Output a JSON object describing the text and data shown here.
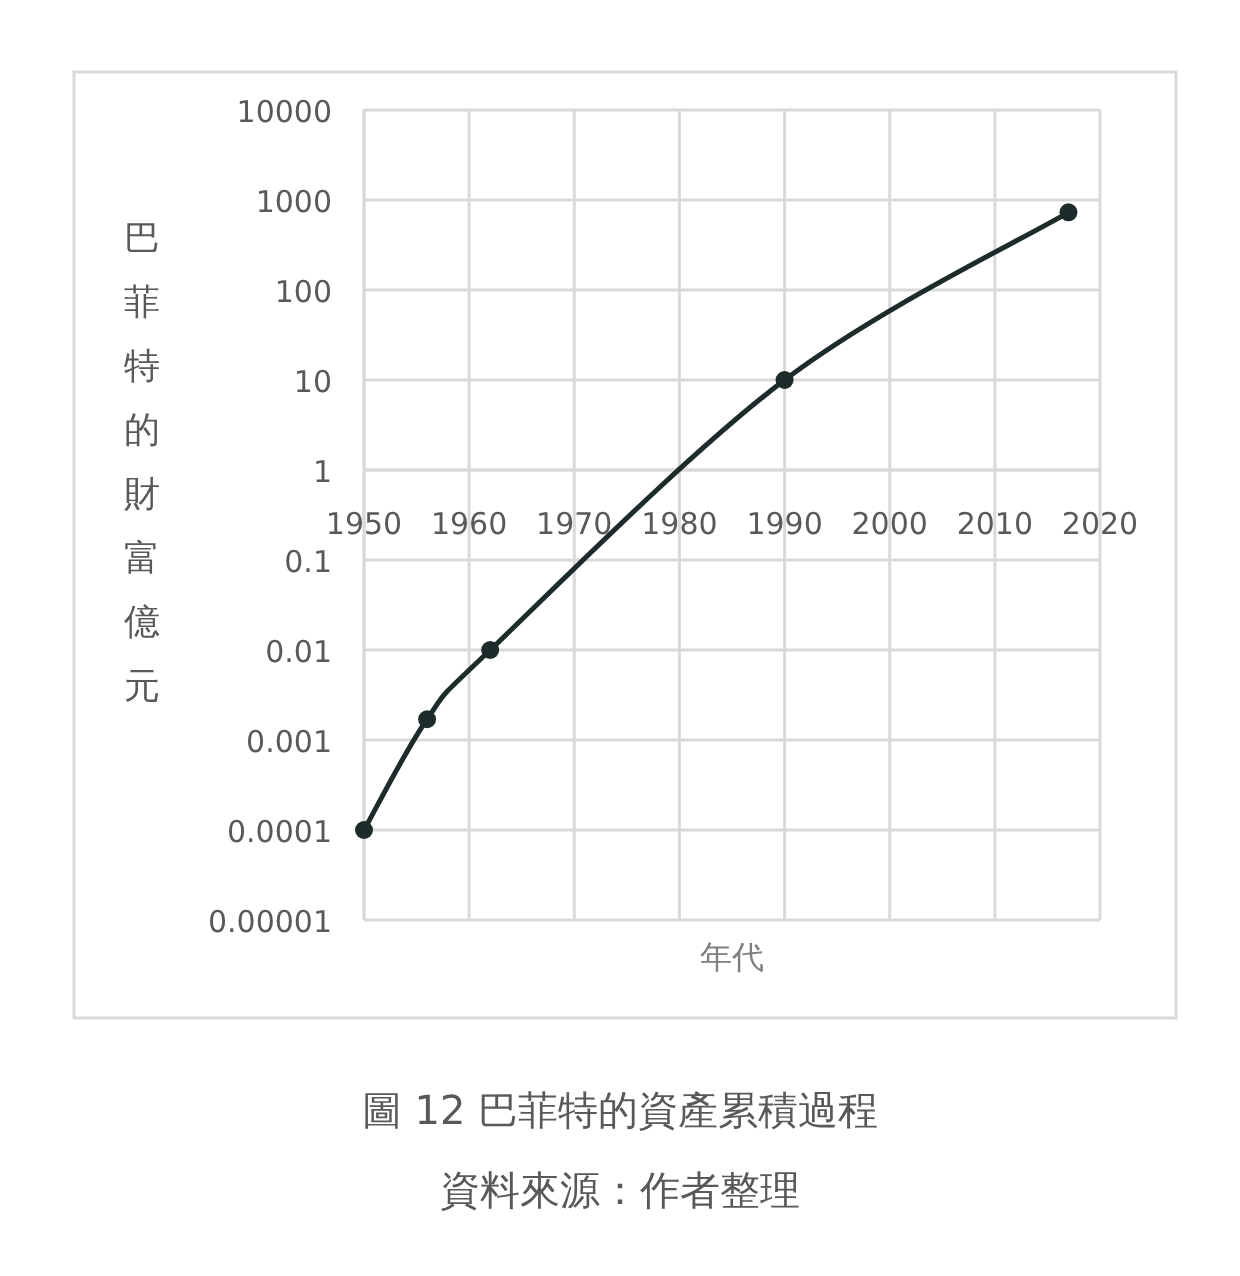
{
  "chart_data": {
    "type": "line",
    "title": "圖 12 巴菲特的資產累積過程",
    "annotations": [
      "資料來源：作者整理"
    ],
    "xlabel": "年代",
    "ylabel": "巴菲特的財富億元",
    "x": [
      1950,
      1956,
      1962,
      1990,
      2017
    ],
    "series": [
      {
        "color": "#1e2b2b",
        "values": [
          0.0001,
          0.0017,
          0.01,
          10,
          730
        ]
      }
    ],
    "log": "y",
    "xlim": [
      1950,
      2020
    ],
    "xticks": [
      1950,
      1960,
      1970,
      1980,
      1990,
      2000,
      2010,
      2020
    ],
    "ylim": [
      1e-05,
      10000
    ],
    "yticks": [
      {
        "value": 1e-05,
        "label": "0.00001"
      },
      0.0001,
      0.001,
      0.01,
      0.1,
      1,
      10,
      100,
      1000,
      10000
    ],
    "grid": true,
    "marker": "circle",
    "line_style": "solid"
  }
}
